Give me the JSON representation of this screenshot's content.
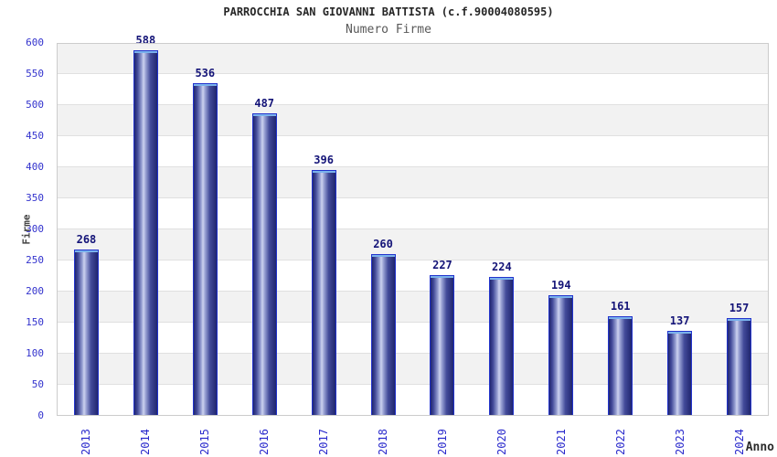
{
  "chart_data": {
    "type": "bar",
    "title": "PARROCCHIA SAN GIOVANNI BATTISTA (c.f.90004080595)",
    "subtitle": "Numero Firme",
    "xlabel": "Anno",
    "ylabel": "Firme",
    "categories": [
      "2013",
      "2014",
      "2015",
      "2016",
      "2017",
      "2018",
      "2019",
      "2020",
      "2021",
      "2022",
      "2023",
      "2024"
    ],
    "values": [
      268,
      588,
      536,
      487,
      396,
      260,
      227,
      224,
      194,
      161,
      137,
      157
    ],
    "ylim": [
      0,
      600
    ],
    "ytick_step": 50,
    "yticks": [
      0,
      50,
      100,
      150,
      200,
      250,
      300,
      350,
      400,
      450,
      500,
      550,
      600
    ],
    "grid": "alternating horizontal bands every 50 units, white and light gray",
    "legend": "none"
  },
  "colors": {
    "background": "#ffffff",
    "band_gray": "#f2f2f2",
    "gridline": "#e0e0e0",
    "plot_border": "#cccccc",
    "title": "#262626",
    "subtitle": "#595959",
    "axis_title": "#444444",
    "y_tick": "#3232cd",
    "x_tick": "#2a2acc",
    "value_label": "#141478",
    "bar_border": "#2233cc",
    "bar_cap": "#7ab2ec",
    "bar_dark": "#20266f",
    "bar_mid": "#434b9a",
    "bar_light": "#97a0d2",
    "bar_highlight": "#cdd3f0"
  }
}
